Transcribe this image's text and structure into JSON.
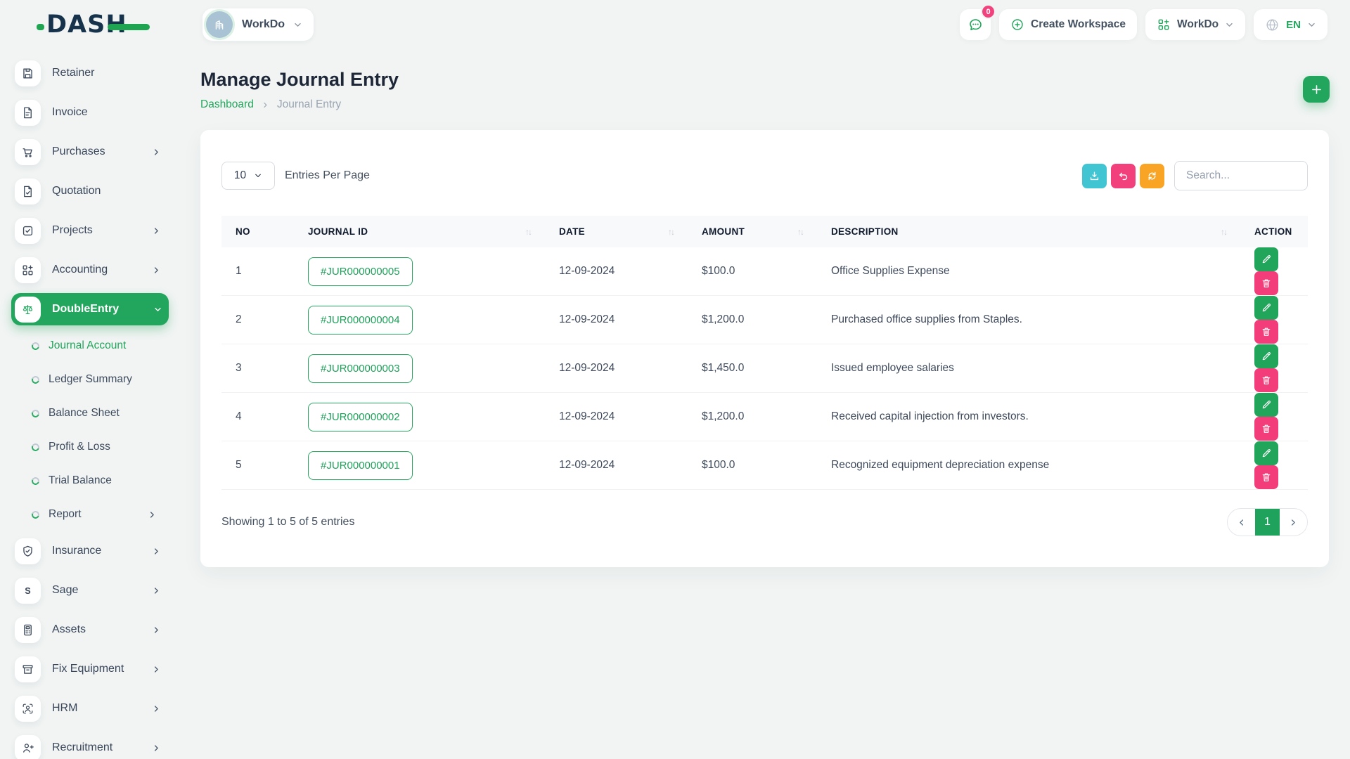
{
  "colors": {
    "accent_green": "#22a55c",
    "pink": "#f2407d",
    "cyan": "#41c5d3",
    "orange": "#f9a425",
    "navy": "#17334b"
  },
  "brand": {
    "logo_text": "DASH"
  },
  "header": {
    "workspace": {
      "label": "WorkDo",
      "icon": "building"
    },
    "messages_badge": "0",
    "create_workspace_label": "Create Workspace",
    "workdo_menu_label": "WorkDo",
    "language_code": "EN"
  },
  "sidebar": {
    "items": [
      {
        "label": "Retainer",
        "icon": "floppy",
        "chevron": false
      },
      {
        "label": "Invoice",
        "icon": "file-lines",
        "chevron": false
      },
      {
        "label": "Purchases",
        "icon": "cart",
        "chevron": true
      },
      {
        "label": "Quotation",
        "icon": "file-check",
        "chevron": false
      },
      {
        "label": "Projects",
        "icon": "square-check",
        "chevron": true
      },
      {
        "label": "Accounting",
        "icon": "grid-plus",
        "chevron": true
      },
      {
        "label": "DoubleEntry",
        "icon": "scales",
        "chevron": true,
        "active": true,
        "expanded": true,
        "submenu": [
          {
            "label": "Journal Account",
            "active": true
          },
          {
            "label": "Ledger Summary"
          },
          {
            "label": "Balance Sheet"
          },
          {
            "label": "Profit & Loss"
          },
          {
            "label": "Trial Balance"
          },
          {
            "label": "Report",
            "chevron": true
          }
        ]
      },
      {
        "label": "Insurance",
        "icon": "shield-check",
        "chevron": true
      },
      {
        "label": "Sage",
        "icon": "letter-s",
        "chevron": true
      },
      {
        "label": "Assets",
        "icon": "calculator",
        "chevron": true
      },
      {
        "label": "Fix Equipment",
        "icon": "archive",
        "chevron": true
      },
      {
        "label": "HRM",
        "icon": "user-focus",
        "chevron": true
      },
      {
        "label": "Recruitment",
        "icon": "user-plus",
        "chevron": true
      }
    ]
  },
  "page": {
    "title": "Manage Journal Entry",
    "breadcrumb": [
      "Dashboard",
      "Journal Entry"
    ]
  },
  "toolbar": {
    "page_size": "10",
    "entries_label": "Entries Per Page",
    "search_placeholder": "Search..."
  },
  "table": {
    "columns": [
      {
        "label": "NO",
        "sortable": false
      },
      {
        "label": "JOURNAL ID",
        "sortable": true
      },
      {
        "label": "DATE",
        "sortable": true
      },
      {
        "label": "AMOUNT",
        "sortable": true
      },
      {
        "label": "DESCRIPTION",
        "sortable": true
      },
      {
        "label": "ACTION",
        "sortable": false
      }
    ],
    "rows": [
      {
        "no": "1",
        "journal_id": "#JUR000000005",
        "date": "12-09-2024",
        "amount": "$100.0",
        "description": "Office Supplies Expense"
      },
      {
        "no": "2",
        "journal_id": "#JUR000000004",
        "date": "12-09-2024",
        "amount": "$1,200.0",
        "description": "Purchased office supplies from Staples."
      },
      {
        "no": "3",
        "journal_id": "#JUR000000003",
        "date": "12-09-2024",
        "amount": "$1,450.0",
        "description": "Issued employee salaries"
      },
      {
        "no": "4",
        "journal_id": "#JUR000000002",
        "date": "12-09-2024",
        "amount": "$1,200.0",
        "description": "Received capital injection from investors."
      },
      {
        "no": "5",
        "journal_id": "#JUR000000001",
        "date": "12-09-2024",
        "amount": "$100.0",
        "description": "Recognized equipment depreciation expense"
      }
    ],
    "footer_text": "Showing 1 to 5 of 5 entries",
    "pagination": {
      "current": "1"
    }
  }
}
